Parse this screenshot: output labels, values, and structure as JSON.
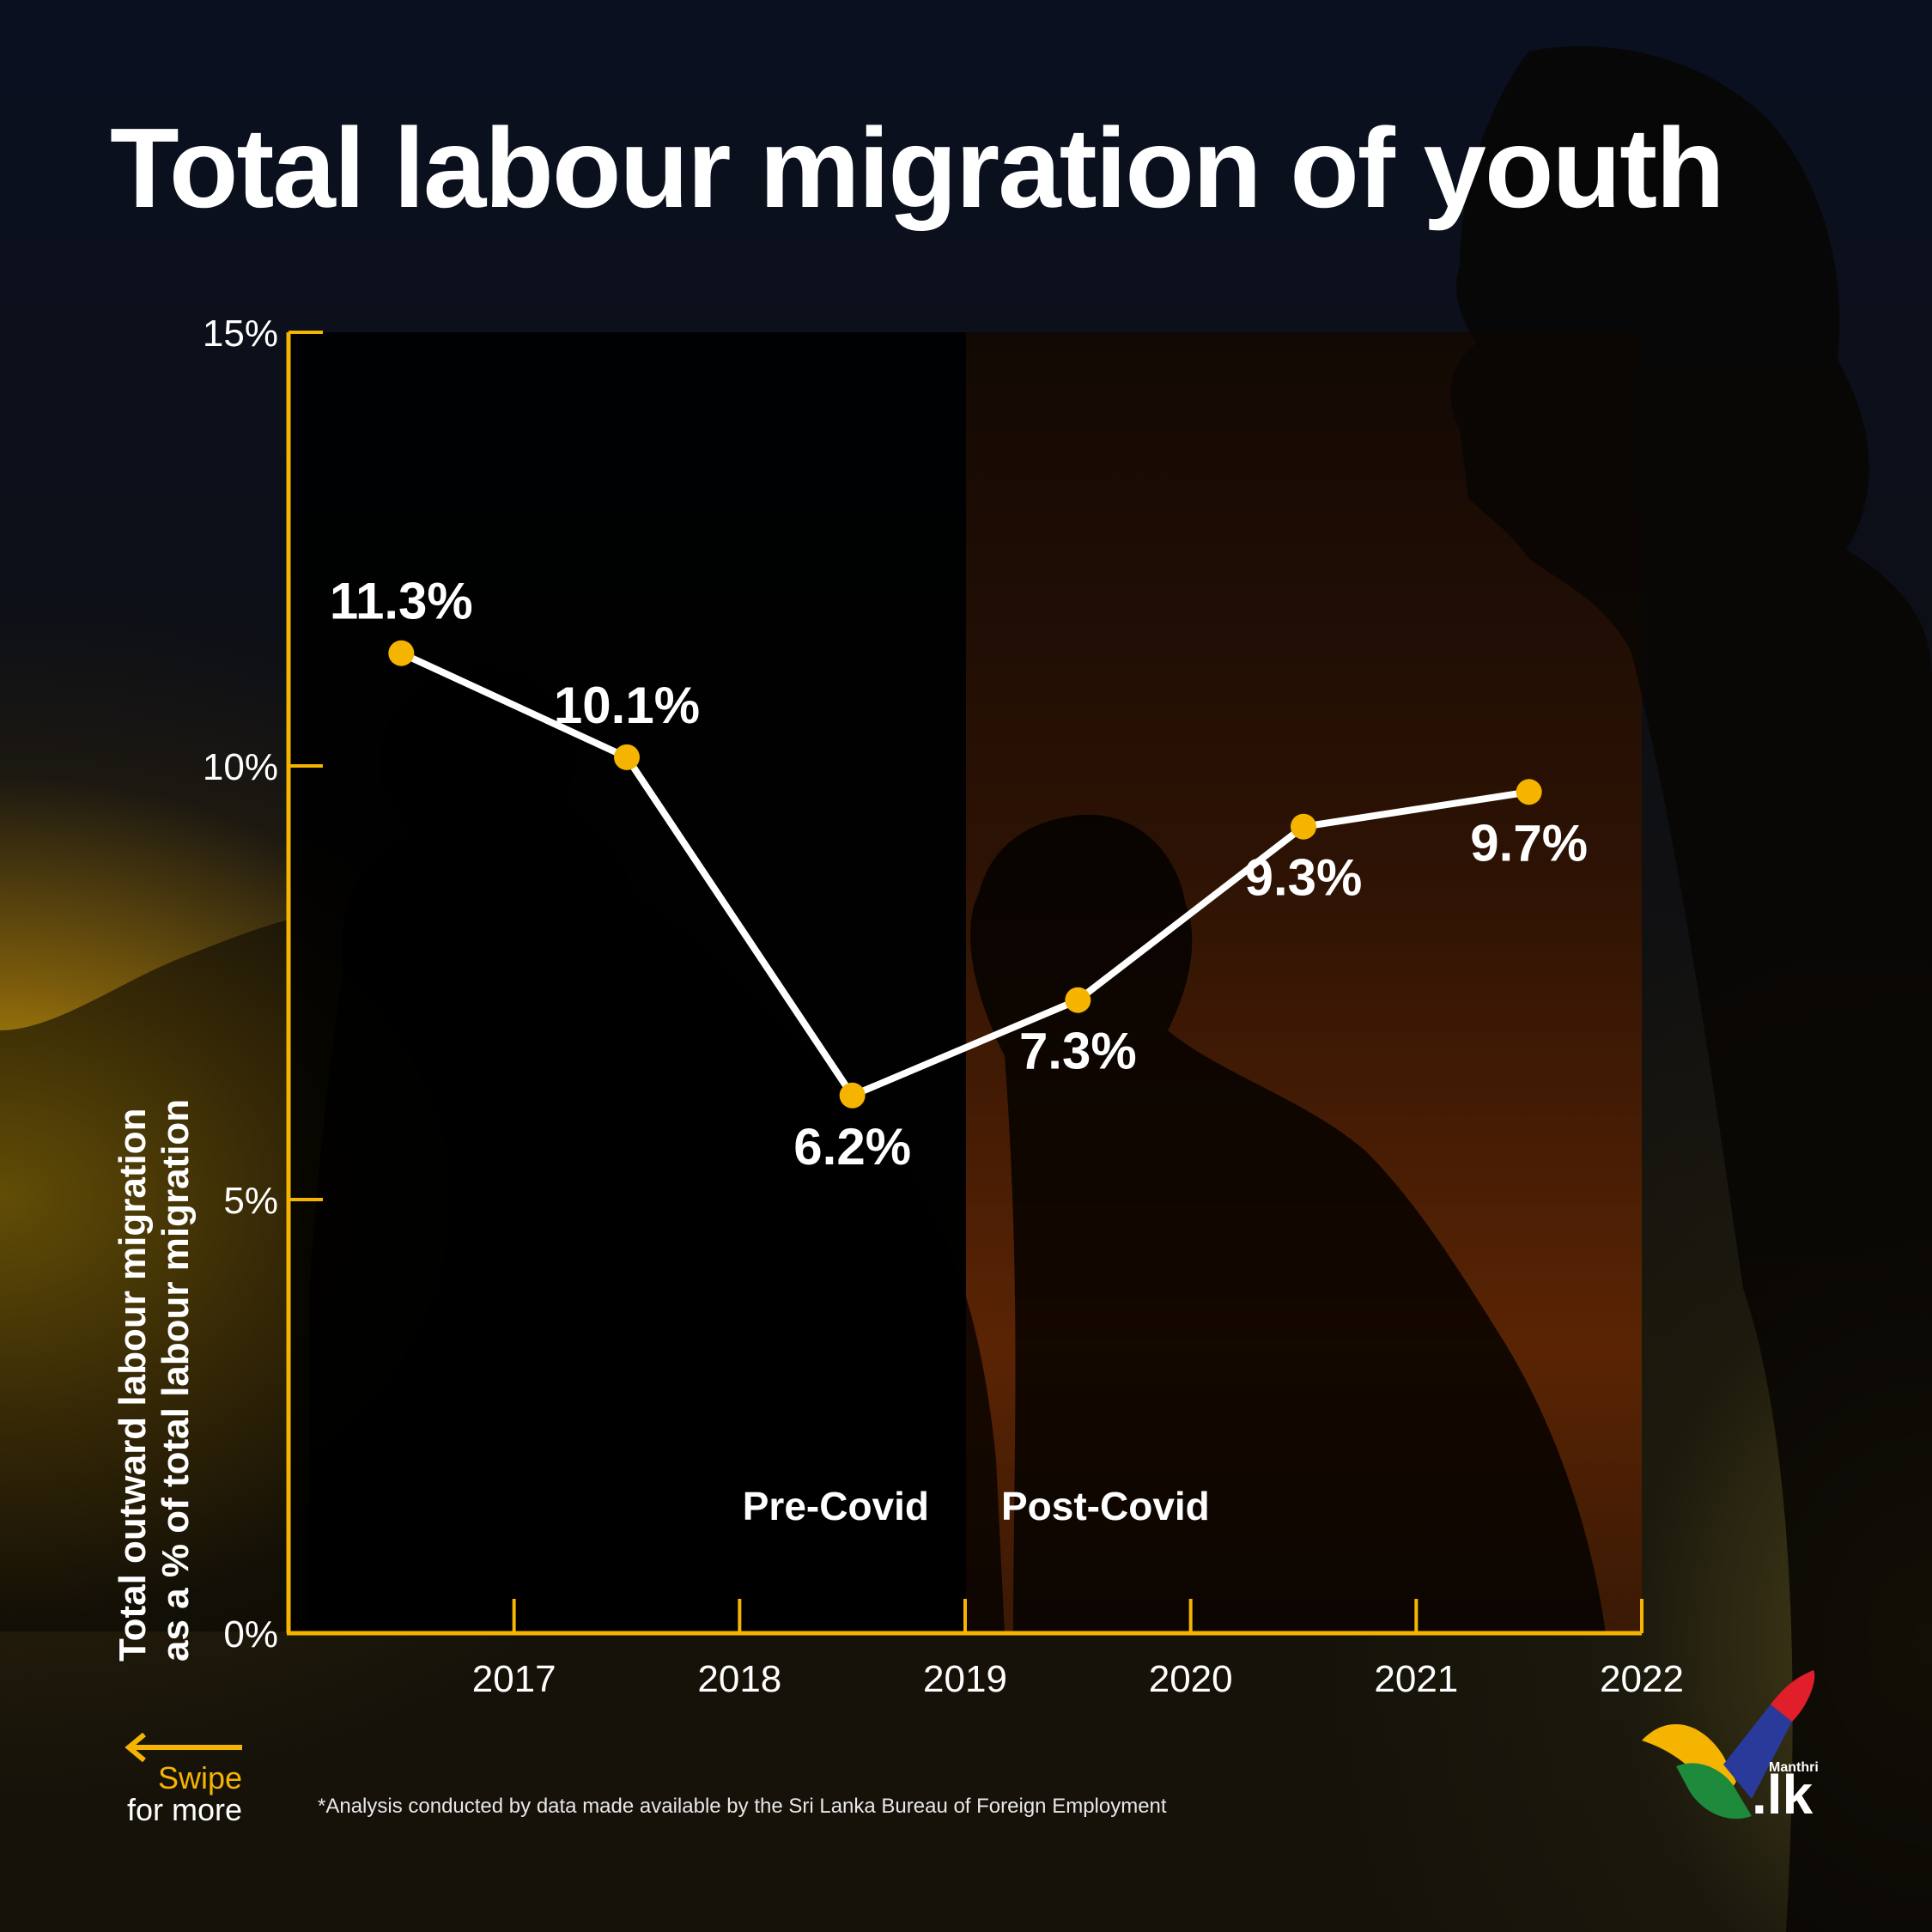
{
  "title": "Total labour migration of youth",
  "chart_data": {
    "type": "line",
    "title": "Total labour migration of youth",
    "ylabel_lines": [
      "Total outward labour migration",
      "as a % of total labour migration"
    ],
    "xlabel": "",
    "y_ticks": [
      "0%",
      "5%",
      "10%",
      "15%"
    ],
    "ylim": [
      0,
      15
    ],
    "x_ticks": [
      "2017",
      "2018",
      "2019",
      "2020",
      "2021",
      "2022"
    ],
    "x_tick_values": [
      2017,
      2018,
      2019,
      2020,
      2021,
      2022
    ],
    "xlim": [
      2016,
      2022
    ],
    "series": [
      {
        "x": [
          2016.5,
          2017.5,
          2018.5,
          2019.5,
          2020.5,
          2021.5
        ],
        "values": [
          11.3,
          10.1,
          6.2,
          7.3,
          9.3,
          9.7
        ],
        "labels": [
          "11.3%",
          "10.1%",
          "6.2%",
          "7.3%",
          "9.3%",
          "9.7%"
        ]
      }
    ],
    "annotations": [
      {
        "text": "Pre-Covid",
        "x_range": [
          2016,
          2019
        ]
      },
      {
        "text": "Post-Covid",
        "x_range": [
          2019,
          2022
        ]
      }
    ],
    "grid": false,
    "line_color": "#ffffff",
    "marker_color": "#f4b400",
    "axis_color": "#f4b400"
  },
  "swipe": {
    "line1": "Swipe",
    "line2": "for more"
  },
  "footnote": "*Analysis conducted by data made available by the Sri Lanka Bureau of Foreign Employment",
  "logo": {
    "brand": "Manthri",
    "tld": ".lk"
  },
  "colors": {
    "accent": "#f4b400",
    "text": "#ffffff"
  }
}
